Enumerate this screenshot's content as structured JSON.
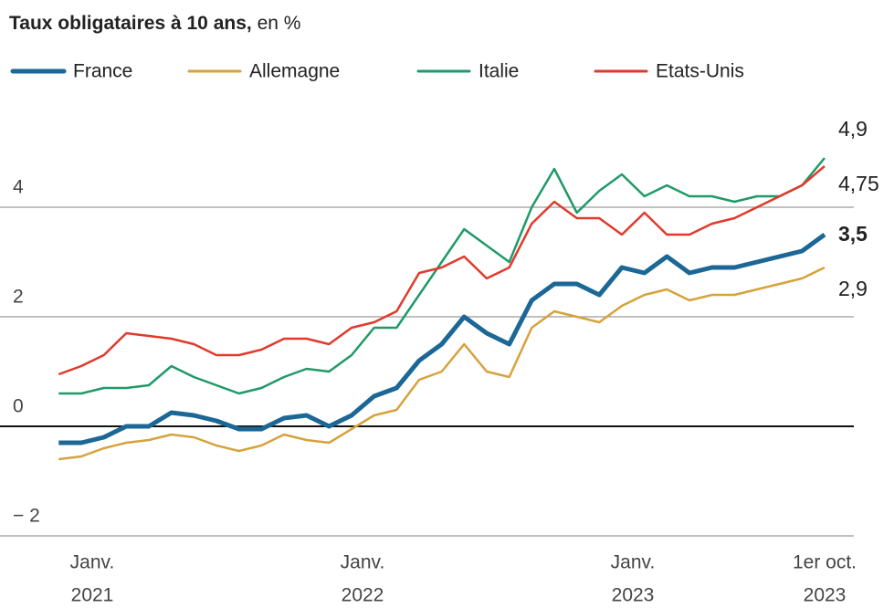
{
  "chart_data": {
    "type": "line",
    "title": "Taux obligataires à 10 ans,",
    "subtitle": "en %",
    "x": [
      "2020-12",
      "2021-01",
      "2021-02",
      "2021-03",
      "2021-04",
      "2021-05",
      "2021-06",
      "2021-07",
      "2021-08",
      "2021-09",
      "2021-10",
      "2021-11",
      "2021-12",
      "2022-01",
      "2022-02",
      "2022-03",
      "2022-04",
      "2022-05",
      "2022-06",
      "2022-07",
      "2022-08",
      "2022-09",
      "2022-10",
      "2022-11",
      "2022-12",
      "2023-01",
      "2023-02",
      "2023-03",
      "2023-04",
      "2023-05",
      "2023-06",
      "2023-07",
      "2023-08",
      "2023-09",
      "2023-10"
    ],
    "series": [
      {
        "name": "France",
        "color": "#1b6795",
        "width": 5,
        "values": [
          -0.3,
          -0.3,
          -0.2,
          0.0,
          0.0,
          0.25,
          0.2,
          0.1,
          -0.05,
          -0.05,
          0.15,
          0.2,
          0.0,
          0.2,
          0.55,
          0.7,
          1.2,
          1.5,
          2.0,
          1.7,
          1.5,
          2.3,
          2.6,
          2.6,
          2.4,
          2.9,
          2.8,
          3.1,
          2.8,
          2.9,
          2.9,
          3.0,
          3.1,
          3.2,
          3.5
        ],
        "value_labels": [
          null,
          null,
          null,
          null,
          null,
          null,
          null,
          null,
          null,
          null,
          null,
          null,
          null,
          null,
          null,
          null,
          null,
          null,
          null,
          null,
          null,
          null,
          null,
          null,
          null,
          null,
          null,
          null,
          null,
          null,
          null,
          null,
          null,
          null,
          "3,5"
        ]
      },
      {
        "name": "Allemagne",
        "color": "#d7a23c",
        "width": 2.5,
        "values": [
          -0.6,
          -0.55,
          -0.4,
          -0.3,
          -0.25,
          -0.15,
          -0.2,
          -0.35,
          -0.45,
          -0.35,
          -0.15,
          -0.25,
          -0.3,
          -0.05,
          0.2,
          0.3,
          0.85,
          1.0,
          1.5,
          1.0,
          0.9,
          1.8,
          2.1,
          2.0,
          1.9,
          2.2,
          2.4,
          2.5,
          2.3,
          2.4,
          2.4,
          2.5,
          2.6,
          2.7,
          2.9
        ],
        "value_labels": [
          null,
          null,
          null,
          null,
          null,
          null,
          null,
          null,
          null,
          null,
          null,
          null,
          null,
          null,
          null,
          null,
          null,
          null,
          null,
          null,
          null,
          null,
          null,
          null,
          null,
          null,
          null,
          null,
          null,
          null,
          null,
          null,
          null,
          null,
          "2,9"
        ]
      },
      {
        "name": "Italie",
        "color": "#1f9a68",
        "width": 2.5,
        "values": [
          0.6,
          0.6,
          0.7,
          0.7,
          0.75,
          1.1,
          0.9,
          0.75,
          0.6,
          0.7,
          0.9,
          1.05,
          1.0,
          1.3,
          1.8,
          1.8,
          2.4,
          3.0,
          3.6,
          3.3,
          3.0,
          4.0,
          4.7,
          3.9,
          4.3,
          4.6,
          4.2,
          4.4,
          4.2,
          4.2,
          4.1,
          4.2,
          4.2,
          4.4,
          4.9
        ],
        "value_labels": [
          null,
          null,
          null,
          null,
          null,
          null,
          null,
          null,
          null,
          null,
          null,
          null,
          null,
          null,
          null,
          null,
          null,
          null,
          null,
          null,
          null,
          null,
          null,
          null,
          null,
          null,
          null,
          null,
          null,
          null,
          null,
          null,
          null,
          null,
          "4,9"
        ]
      },
      {
        "name": "Etats-Unis",
        "color": "#e03a2c",
        "width": 2.5,
        "values": [
          0.95,
          1.1,
          1.3,
          1.7,
          1.65,
          1.6,
          1.5,
          1.3,
          1.3,
          1.4,
          1.6,
          1.6,
          1.5,
          1.8,
          1.9,
          2.1,
          2.8,
          2.9,
          3.1,
          2.7,
          2.9,
          3.7,
          4.1,
          3.8,
          3.8,
          3.5,
          3.9,
          3.5,
          3.5,
          3.7,
          3.8,
          4.0,
          4.2,
          4.4,
          4.75
        ],
        "value_labels": [
          null,
          null,
          null,
          null,
          null,
          null,
          null,
          null,
          null,
          null,
          null,
          null,
          null,
          null,
          null,
          null,
          null,
          null,
          null,
          null,
          null,
          null,
          null,
          null,
          null,
          null,
          null,
          null,
          null,
          null,
          null,
          null,
          null,
          null,
          "4,75"
        ]
      }
    ],
    "ylim": [
      -2.3,
      5.8
    ],
    "yticks": [
      {
        "value": -2,
        "label": "− 2"
      },
      0,
      2,
      4
    ],
    "xticks": [
      {
        "value": "2021-01",
        "label": [
          "Janv.",
          "2021"
        ]
      },
      {
        "value": "2022-01",
        "label": [
          "Janv.",
          "2022"
        ]
      },
      {
        "value": "2023-01",
        "label": [
          "Janv.",
          "2023"
        ]
      },
      {
        "value": "2023-10",
        "label": [
          "1er oct.",
          "2023"
        ]
      }
    ],
    "grid": true
  }
}
